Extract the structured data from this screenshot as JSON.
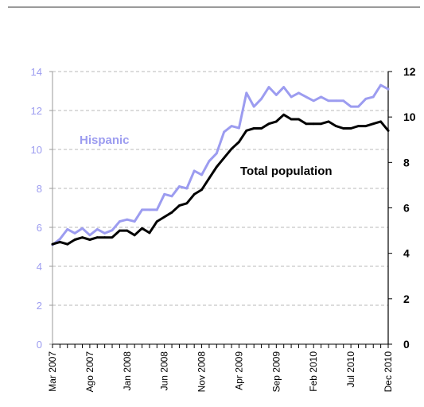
{
  "chart_data": {
    "type": "line",
    "x_labels": [
      "Mar 2007",
      "Ago 2007",
      "Jan 2008",
      "Jun 2008",
      "Nov 2008",
      "Apr 2009",
      "Sep 2009",
      "Feb 2010",
      "Jul 2010",
      "Dec 2010"
    ],
    "left_axis": {
      "ylim": [
        0,
        14
      ],
      "ticks": [
        "0",
        "2",
        "4",
        "6",
        "8",
        "10",
        "12",
        "14"
      ]
    },
    "right_axis": {
      "ylim": [
        0,
        12
      ],
      "ticks": [
        "0",
        "2",
        "4",
        "6",
        "8",
        "10",
        "12"
      ]
    },
    "grid": "horizontal dashed",
    "series": [
      {
        "name": "Hispanic",
        "axis": "left",
        "color": "#9c9cf0",
        "values": [
          5.1,
          5.4,
          5.9,
          5.7,
          5.95,
          5.6,
          5.9,
          5.7,
          5.85,
          6.3,
          6.4,
          6.3,
          6.9,
          6.9,
          6.9,
          7.7,
          7.6,
          8.1,
          8.0,
          8.9,
          8.7,
          9.4,
          9.8,
          10.9,
          11.2,
          11.1,
          12.9,
          12.2,
          12.6,
          13.2,
          12.8,
          13.2,
          12.7,
          12.9,
          12.7,
          12.5,
          12.7,
          12.5,
          12.5,
          12.5,
          12.2,
          12.2,
          12.6,
          12.7,
          13.3,
          13.1
        ]
      },
      {
        "name": "Total population",
        "axis": "right",
        "color": "#000000",
        "values": [
          4.4,
          4.5,
          4.4,
          4.6,
          4.7,
          4.6,
          4.7,
          4.7,
          4.7,
          5.0,
          5.0,
          4.8,
          5.1,
          4.9,
          5.4,
          5.6,
          5.8,
          6.1,
          6.2,
          6.6,
          6.8,
          7.3,
          7.8,
          8.2,
          8.6,
          8.9,
          9.4,
          9.5,
          9.5,
          9.7,
          9.8,
          10.1,
          9.9,
          9.9,
          9.7,
          9.7,
          9.7,
          9.8,
          9.6,
          9.5,
          9.5,
          9.6,
          9.6,
          9.7,
          9.8,
          9.4
        ]
      }
    ],
    "annotations": [
      "Hispanic",
      "Total population"
    ]
  }
}
